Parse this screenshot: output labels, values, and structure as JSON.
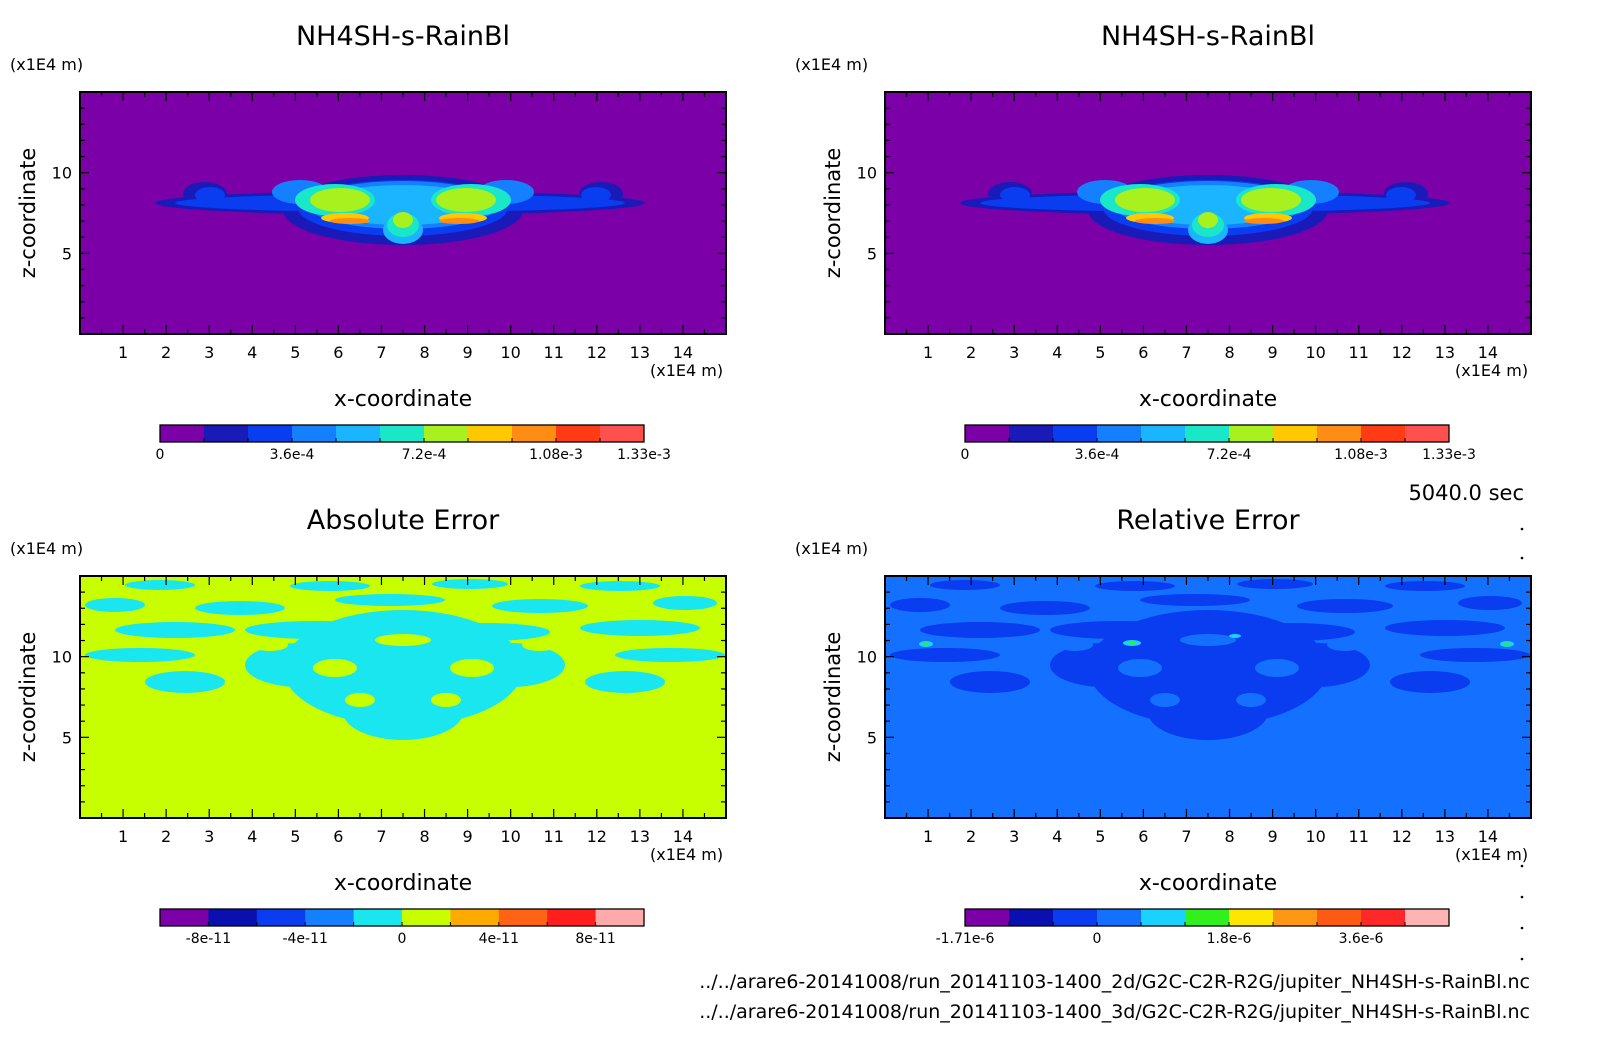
{
  "time_label": "5040.0 sec",
  "files": [
    "../../arare6-20141008/run_20141103-1400_2d/G2C-C2R-R2G/jupiter_NH4SH-s-RainBl.nc",
    "../../arare6-20141008/run_20141103-1400_3d/G2C-C2R-R2G/jupiter_NH4SH-s-RainBl.nc"
  ],
  "colors": {
    "field_levels": [
      "#7b00a8",
      "#1a1ab8",
      "#0a3cf0",
      "#1480ff",
      "#1ab4ff",
      "#1ae6c8",
      "#a8f01e",
      "#ffc800",
      "#ff8c14",
      "#ff3c14",
      "#ff5050"
    ],
    "abs_error_levels": [
      "#7b00a8",
      "#0a10b0",
      "#0a3cf0",
      "#1480ff",
      "#1ae6f0",
      "#c8ff00",
      "#ffaa00",
      "#ff6414",
      "#ff1e1e",
      "#ffaaaa"
    ],
    "rel_error_levels": [
      "#7b00a8",
      "#0a10b0",
      "#0a3cf0",
      "#1470ff",
      "#1ad2ff",
      "#32f01e",
      "#ffe600",
      "#ff9614",
      "#ff5a14",
      "#ff2828",
      "#ffb4b4"
    ]
  },
  "chart_data": [
    {
      "type": "heatmap",
      "title": "NH4SH-s-RainBl",
      "xlabel": "x-coordinate",
      "ylabel": "z-coordinate",
      "x_unit": "(x1E4 m)",
      "z_unit": "(x1E4 m)",
      "xlim": [
        0,
        15
      ],
      "ylim": [
        0,
        15
      ],
      "x_ticks": [
        "1",
        "2",
        "3",
        "4",
        "5",
        "6",
        "7",
        "8",
        "9",
        "10",
        "11",
        "12",
        "13",
        "14"
      ],
      "y_ticks": [
        "5",
        "10"
      ],
      "background_level": 0,
      "colorbar": {
        "levels": 11,
        "labels": [
          "0",
          "3.6e-4",
          "7.2e-4",
          "1.08e-3",
          "1.33e-3"
        ],
        "label_levels": [
          0,
          3,
          6,
          9,
          11
        ]
      }
    },
    {
      "type": "heatmap",
      "title": "NH4SH-s-RainBl",
      "xlabel": "x-coordinate",
      "ylabel": "z-coordinate",
      "x_unit": "(x1E4 m)",
      "z_unit": "(x1E4 m)",
      "xlim": [
        0,
        15
      ],
      "ylim": [
        0,
        15
      ],
      "x_ticks": [
        "1",
        "2",
        "3",
        "4",
        "5",
        "6",
        "7",
        "8",
        "9",
        "10",
        "11",
        "12",
        "13",
        "14"
      ],
      "y_ticks": [
        "5",
        "10"
      ],
      "background_level": 0,
      "colorbar": {
        "levels": 11,
        "labels": [
          "0",
          "3.6e-4",
          "7.2e-4",
          "1.08e-3",
          "1.33e-3"
        ],
        "label_levels": [
          0,
          3,
          6,
          9,
          11
        ]
      }
    },
    {
      "type": "heatmap",
      "title": "Absolute Error",
      "xlabel": "x-coordinate",
      "ylabel": "z-coordinate",
      "x_unit": "(x1E4 m)",
      "z_unit": "(x1E4 m)",
      "xlim": [
        0,
        15
      ],
      "ylim": [
        0,
        15
      ],
      "x_ticks": [
        "1",
        "2",
        "3",
        "4",
        "5",
        "6",
        "7",
        "8",
        "9",
        "10",
        "11",
        "12",
        "13",
        "14"
      ],
      "y_ticks": [
        "5",
        "10"
      ],
      "background_level": 5,
      "colorbar": {
        "levels": 10,
        "labels": [
          "-8e-11",
          "-4e-11",
          "0",
          "4e-11",
          "8e-11"
        ],
        "label_levels": [
          1,
          3,
          5,
          7,
          9
        ]
      }
    },
    {
      "type": "heatmap",
      "title": "Relative Error",
      "xlabel": "x-coordinate",
      "ylabel": "z-coordinate",
      "x_unit": "(x1E4 m)",
      "z_unit": "(x1E4 m)",
      "xlim": [
        0,
        15
      ],
      "ylim": [
        0,
        15
      ],
      "x_ticks": [
        "1",
        "2",
        "3",
        "4",
        "5",
        "6",
        "7",
        "8",
        "9",
        "10",
        "11",
        "12",
        "13",
        "14"
      ],
      "y_ticks": [
        "5",
        "10"
      ],
      "background_level": 3,
      "colorbar": {
        "levels": 11,
        "labels": [
          "-1.71e-6",
          "0",
          "1.8e-6",
          "3.6e-6"
        ],
        "label_levels": [
          0,
          3,
          6,
          9
        ]
      }
    }
  ]
}
